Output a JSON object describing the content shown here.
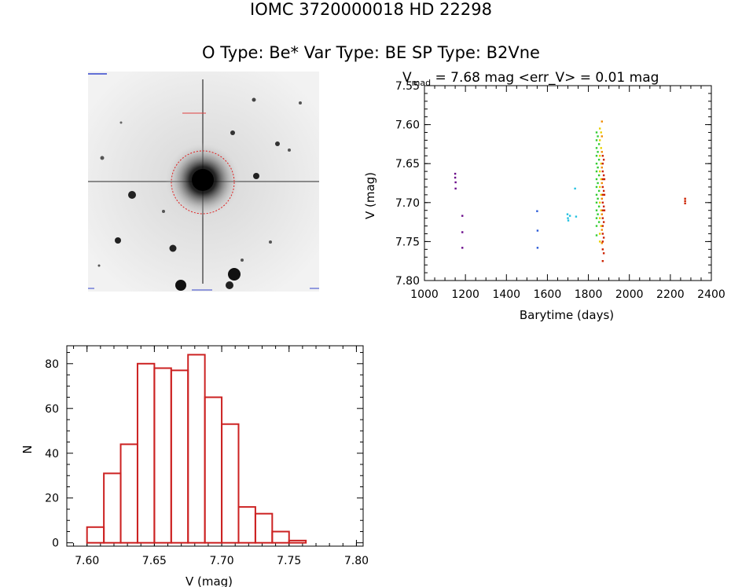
{
  "header": {
    "title_line1": "IOMC 3720000018    HD  22298",
    "title_line2": "O Type: Be*  Var Type: BE  SP Type: B2Vne"
  },
  "thumbnail": {
    "top_left_label": "",
    "target_label": "",
    "bottom_label": ""
  },
  "chart_data": [
    {
      "type": "scatter",
      "title_prefix": "V",
      "title_sub": "mad",
      "title_rest": " = 7.68 mag <err_V> = 0.01 mag",
      "xlabel": "Barytime (days)",
      "ylabel": "V (mag)",
      "xlim": [
        1000,
        2400
      ],
      "ylim": [
        7.8,
        7.55
      ],
      "xticks": [
        1000,
        1200,
        1400,
        1600,
        1800,
        2000,
        2200,
        2400
      ],
      "yticks": [
        7.55,
        7.6,
        7.65,
        7.7,
        7.75,
        7.8
      ],
      "series": [
        {
          "color": "#6a0a8a",
          "points": [
            [
              1150,
              7.663
            ],
            [
              1150,
              7.668
            ],
            [
              1152,
              7.674
            ],
            [
              1152,
              7.682
            ],
            [
              1185,
              7.717
            ],
            [
              1185,
              7.738
            ],
            [
              1185,
              7.758
            ]
          ]
        },
        {
          "color": "#2a5ad8",
          "points": [
            [
              1550,
              7.711
            ],
            [
              1552,
              7.736
            ],
            [
              1552,
              7.758
            ]
          ]
        },
        {
          "color": "#22c0e0",
          "points": [
            [
              1698,
              7.715
            ],
            [
              1700,
              7.72
            ],
            [
              1702,
              7.723
            ],
            [
              1710,
              7.717
            ],
            [
              1735,
              7.682
            ],
            [
              1740,
              7.718
            ]
          ]
        },
        {
          "color": "#33cc33",
          "points": [
            [
              1840,
              7.61
            ],
            [
              1840,
              7.62
            ],
            [
              1840,
              7.63
            ],
            [
              1840,
              7.64
            ],
            [
              1840,
              7.65
            ],
            [
              1840,
              7.66
            ],
            [
              1840,
              7.67
            ],
            [
              1840,
              7.68
            ],
            [
              1840,
              7.69
            ],
            [
              1840,
              7.7
            ],
            [
              1840,
              7.71
            ],
            [
              1840,
              7.72
            ],
            [
              1840,
              7.73
            ],
            [
              1840,
              7.742
            ],
            [
              1846,
              7.615
            ],
            [
              1846,
              7.635
            ],
            [
              1846,
              7.655
            ],
            [
              1846,
              7.675
            ],
            [
              1846,
              7.695
            ],
            [
              1846,
              7.715
            ],
            [
              1852,
              7.625
            ],
            [
              1852,
              7.645
            ],
            [
              1852,
              7.665
            ],
            [
              1852,
              7.685
            ],
            [
              1852,
              7.705
            ],
            [
              1852,
              7.725
            ]
          ]
        },
        {
          "color": "#e8d000",
          "points": [
            [
              1856,
              7.605
            ],
            [
              1856,
              7.62
            ],
            [
              1856,
              7.64
            ],
            [
              1856,
              7.66
            ],
            [
              1856,
              7.68
            ],
            [
              1856,
              7.7
            ],
            [
              1856,
              7.72
            ],
            [
              1856,
              7.74
            ],
            [
              1856,
              7.75
            ],
            [
              1862,
              7.61
            ],
            [
              1862,
              7.63
            ],
            [
              1862,
              7.65
            ],
            [
              1862,
              7.67
            ],
            [
              1862,
              7.69
            ],
            [
              1862,
              7.71
            ],
            [
              1862,
              7.73
            ]
          ]
        },
        {
          "color": "#f08a00",
          "points": [
            [
              1866,
              7.596
            ],
            [
              1866,
              7.615
            ],
            [
              1866,
              7.635
            ],
            [
              1866,
              7.655
            ],
            [
              1866,
              7.675
            ],
            [
              1866,
              7.695
            ],
            [
              1866,
              7.715
            ],
            [
              1866,
              7.735
            ],
            [
              1866,
              7.752
            ]
          ]
        },
        {
          "color": "#cc2200",
          "points": [
            [
              1870,
              7.64
            ],
            [
              1870,
              7.65
            ],
            [
              1870,
              7.66
            ],
            [
              1870,
              7.67
            ],
            [
              1870,
              7.68
            ],
            [
              1870,
              7.69
            ],
            [
              1870,
              7.7
            ],
            [
              1870,
              7.71
            ],
            [
              1870,
              7.72
            ],
            [
              1870,
              7.73
            ],
            [
              1870,
              7.74
            ],
            [
              1870,
              7.75
            ],
            [
              1870,
              7.76
            ],
            [
              1870,
              7.775
            ],
            [
              1875,
              7.645
            ],
            [
              1875,
              7.665
            ],
            [
              1875,
              7.685
            ],
            [
              1875,
              7.705
            ],
            [
              1875,
              7.725
            ],
            [
              1875,
              7.745
            ],
            [
              1875,
              7.765
            ],
            [
              1878,
              7.67
            ],
            [
              1878,
              7.69
            ],
            [
              1878,
              7.71
            ],
            [
              2272,
              7.695
            ],
            [
              2272,
              7.698
            ],
            [
              2272,
              7.701
            ]
          ]
        }
      ]
    },
    {
      "type": "bar",
      "xlabel": "V (mag)",
      "ylabel": "N",
      "xlim": [
        7.585,
        7.805
      ],
      "ylim": [
        -1.5,
        88
      ],
      "xticks": [
        7.6,
        7.65,
        7.7,
        7.75,
        7.8
      ],
      "yticks": [
        0,
        20,
        40,
        60,
        80
      ],
      "bin_width": 0.0125,
      "bin_edges_start": [
        7.5875,
        7.6,
        7.6125,
        7.625,
        7.6375,
        7.65,
        7.6625,
        7.675,
        7.6875,
        7.7,
        7.7125,
        7.725,
        7.7375,
        7.75,
        7.7625,
        7.775
      ],
      "values": [
        0,
        7,
        31,
        44,
        80,
        78,
        77,
        84,
        65,
        53,
        16,
        13,
        5,
        1,
        0,
        0
      ],
      "bar_color": "#cc2222"
    }
  ]
}
